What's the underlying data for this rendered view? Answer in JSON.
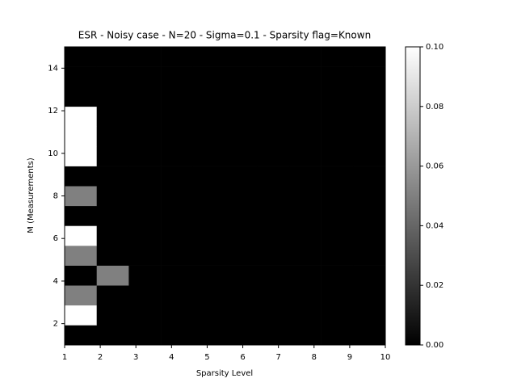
{
  "chart_data": {
    "type": "heatmap",
    "title": "ESR - Noisy case - N=20 - Sigma=0.1 - Sparsity flag=Known",
    "x_label": "Sparsity Level",
    "y_label": "M (Measurements)",
    "colormap": "gray",
    "xlim": [
      1,
      10
    ],
    "ylim": [
      1,
      15
    ],
    "xticks": [
      1,
      2,
      3,
      4,
      5,
      6,
      7,
      8,
      9,
      10
    ],
    "yticks": [
      2,
      4,
      6,
      8,
      10,
      12,
      14
    ],
    "clim": [
      0,
      0.1
    ],
    "cticks": [
      {
        "value": 0,
        "label": "0.00"
      },
      {
        "value": 0.02,
        "label": "0.02"
      },
      {
        "value": 0.04,
        "label": "0.04"
      },
      {
        "value": 0.06,
        "label": "0.06"
      },
      {
        "value": 0.08,
        "label": "0.08"
      },
      {
        "value": 0.1,
        "label": "0.10"
      }
    ],
    "values": [
      [
        0,
        0,
        0,
        0,
        0,
        0,
        0,
        0,
        0,
        0
      ],
      [
        0.1,
        0,
        0,
        0,
        0,
        0,
        0,
        0,
        0,
        0
      ],
      [
        0.05,
        0,
        0,
        0,
        0,
        0,
        0,
        0,
        0,
        0
      ],
      [
        0,
        0.05,
        0,
        0,
        0,
        0,
        0,
        0,
        0,
        0
      ],
      [
        0.05,
        0,
        0,
        0,
        0,
        0,
        0,
        0,
        0,
        0
      ],
      [
        0.1,
        0,
        0,
        0,
        0,
        0,
        0,
        0,
        0,
        0
      ],
      [
        0,
        0,
        0,
        0,
        0,
        0,
        0,
        0,
        0,
        0
      ],
      [
        0.05,
        0,
        0,
        0,
        0,
        0,
        0,
        0,
        0,
        0
      ],
      [
        0,
        0,
        0,
        0,
        0,
        0,
        0,
        0,
        0,
        0
      ],
      [
        0.1,
        0,
        0,
        0,
        0,
        0,
        0,
        0,
        0,
        0
      ],
      [
        0.1,
        0,
        0,
        0,
        0,
        0,
        0,
        0,
        0,
        0
      ],
      [
        0.1,
        0,
        0,
        0,
        0,
        0,
        0,
        0,
        0,
        0
      ],
      [
        0,
        0,
        0,
        0,
        0,
        0,
        0,
        0,
        0,
        0
      ],
      [
        0,
        0,
        0,
        0,
        0,
        0,
        0,
        0,
        0,
        0
      ],
      [
        0,
        0,
        0,
        0,
        0,
        0,
        0,
        0,
        0,
        0
      ]
    ]
  }
}
